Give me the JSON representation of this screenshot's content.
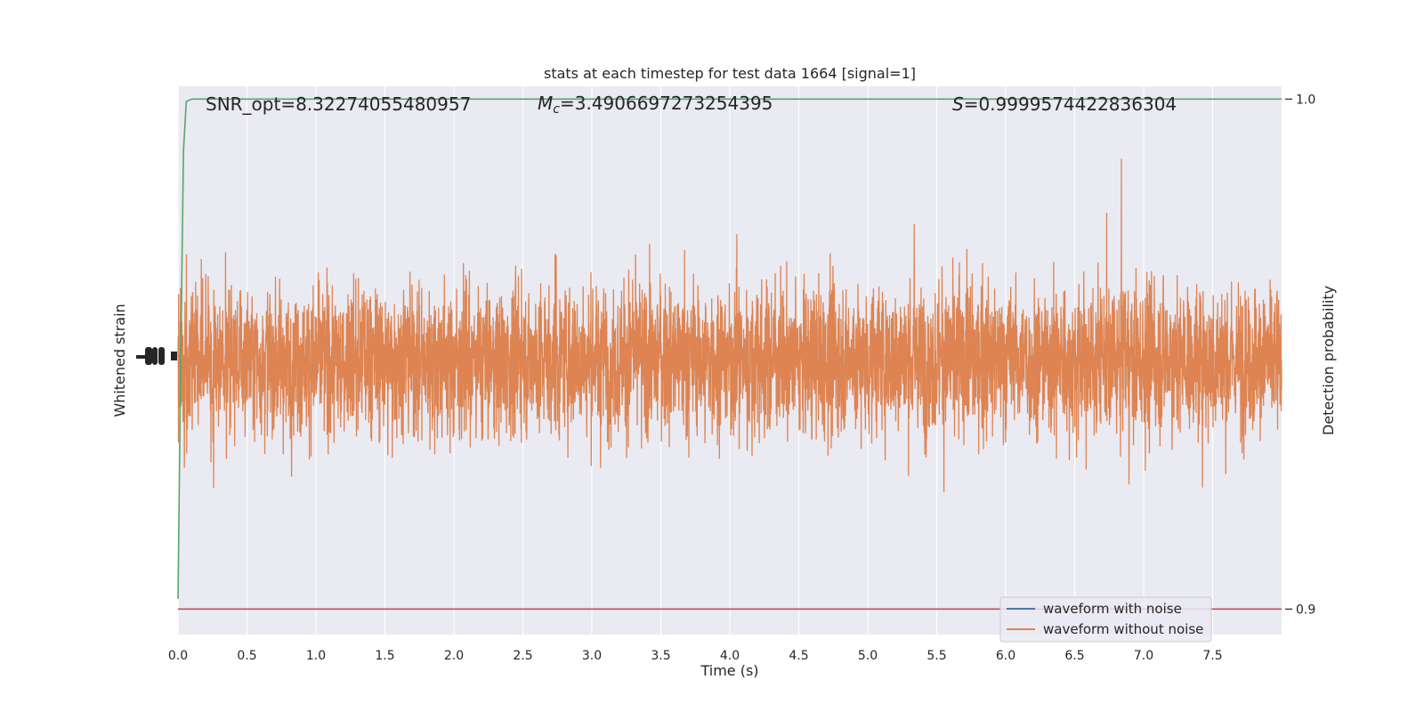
{
  "chart_data": {
    "type": "line",
    "title": "stats at each timestep for test data 1664 [signal=1]",
    "xlabel": "Time (s)",
    "ylabel_left": "Whitened strain",
    "ylabel_right": "Detection probability",
    "xlim": [
      0.0,
      8.0
    ],
    "x_ticks": [
      "0.0",
      "0.5",
      "1.0",
      "1.5",
      "2.0",
      "2.5",
      "3.0",
      "3.5",
      "4.0",
      "4.5",
      "5.0",
      "5.5",
      "6.0",
      "6.5",
      "7.0",
      "7.5"
    ],
    "x_tick_values": [
      0.0,
      0.5,
      1.0,
      1.5,
      2.0,
      2.5,
      3.0,
      3.5,
      4.0,
      4.5,
      5.0,
      5.5,
      6.0,
      6.5,
      7.0,
      7.5
    ],
    "right_ylim": [
      0.895,
      1.0025
    ],
    "right_y_ticks": [
      "0.9",
      "1.0"
    ],
    "right_y_tick_values": [
      0.9,
      1.0
    ],
    "grid": true,
    "legend_placement": "lower-right",
    "series": [
      {
        "name": "waveform with noise",
        "color": "#4c72b0",
        "values": []
      },
      {
        "name": "waveform without noise",
        "color": "#dd8452",
        "amplitude_envelope": [
          -1.0,
          1.0
        ]
      }
    ],
    "probability": {
      "color": "#55a868",
      "x": [
        0.0,
        0.02,
        0.04,
        0.06,
        0.1,
        0.2,
        8.0
      ],
      "y": [
        0.902,
        0.95,
        0.99,
        0.9995,
        1.0,
        1.0,
        1.0
      ]
    },
    "threshold": {
      "color": "#c44e52",
      "y": 0.9
    },
    "annotations": {
      "snr": "SNR_opt=8.32274055480957",
      "mc": "=3.4906697273254395",
      "s": "=0.9999574422836304"
    },
    "colors": {
      "plot_bg": "#eaeaf2",
      "grid": "#ffffff"
    }
  }
}
